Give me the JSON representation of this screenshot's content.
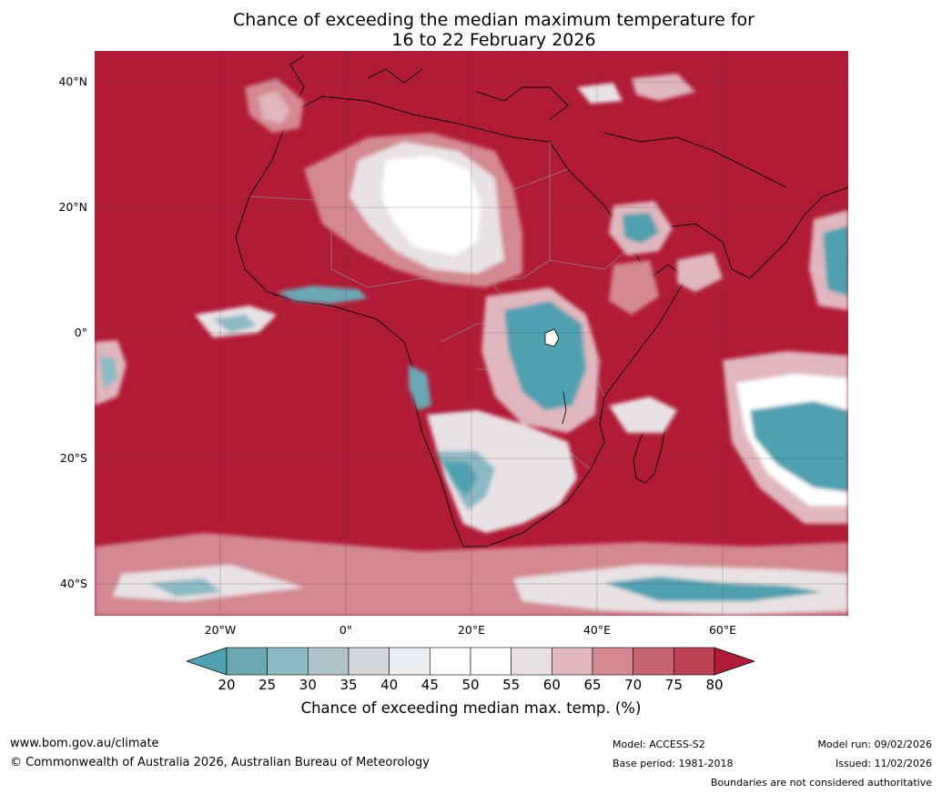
{
  "title": {
    "line1": "Chance of exceeding the median maximum temperature for",
    "line2": "16 to 22 February 2026"
  },
  "map": {
    "lat_labels": [
      "40°N",
      "20°N",
      "0°",
      "20°S",
      "40°S"
    ],
    "lat_values": [
      40,
      20,
      0,
      -20,
      -40
    ],
    "lon_labels": [
      "20°W",
      "0°",
      "20°E",
      "40°E",
      "60°E"
    ],
    "lon_values": [
      -20,
      0,
      20,
      40,
      60
    ],
    "extent": {
      "lon_min": -40,
      "lon_max": 80,
      "lat_min": -45,
      "lat_max": 45
    },
    "ocean_fill": "#b21b36"
  },
  "colorbar": {
    "ticks": [
      "20",
      "25",
      "30",
      "35",
      "40",
      "45",
      "50",
      "55",
      "60",
      "65",
      "70",
      "75",
      "80"
    ],
    "colors": [
      "#4fa0b0",
      "#6aa8b3",
      "#8bb9c4",
      "#aec4c8",
      "#d3d7da",
      "#eaeef1",
      "#ffffff",
      "#ffffff",
      "#e8e2e4",
      "#e0b7bd",
      "#d48891",
      "#c66471",
      "#bd4253",
      "#b21b36"
    ],
    "label": "Chance of exceeding median max. temp. (%)"
  },
  "footer": {
    "website": "www.bom.gov.au/climate",
    "copyright": "© Commonwealth of Australia 2026, Australian Bureau of Meteorology",
    "model": "Model: ACCESS-S2",
    "base_period": "Base period: 1981-2018",
    "model_run": "Model run: 09/02/2026",
    "issued": "Issued: 11/02/2026",
    "disclaimer": "Boundaries are not considered authoritative"
  }
}
